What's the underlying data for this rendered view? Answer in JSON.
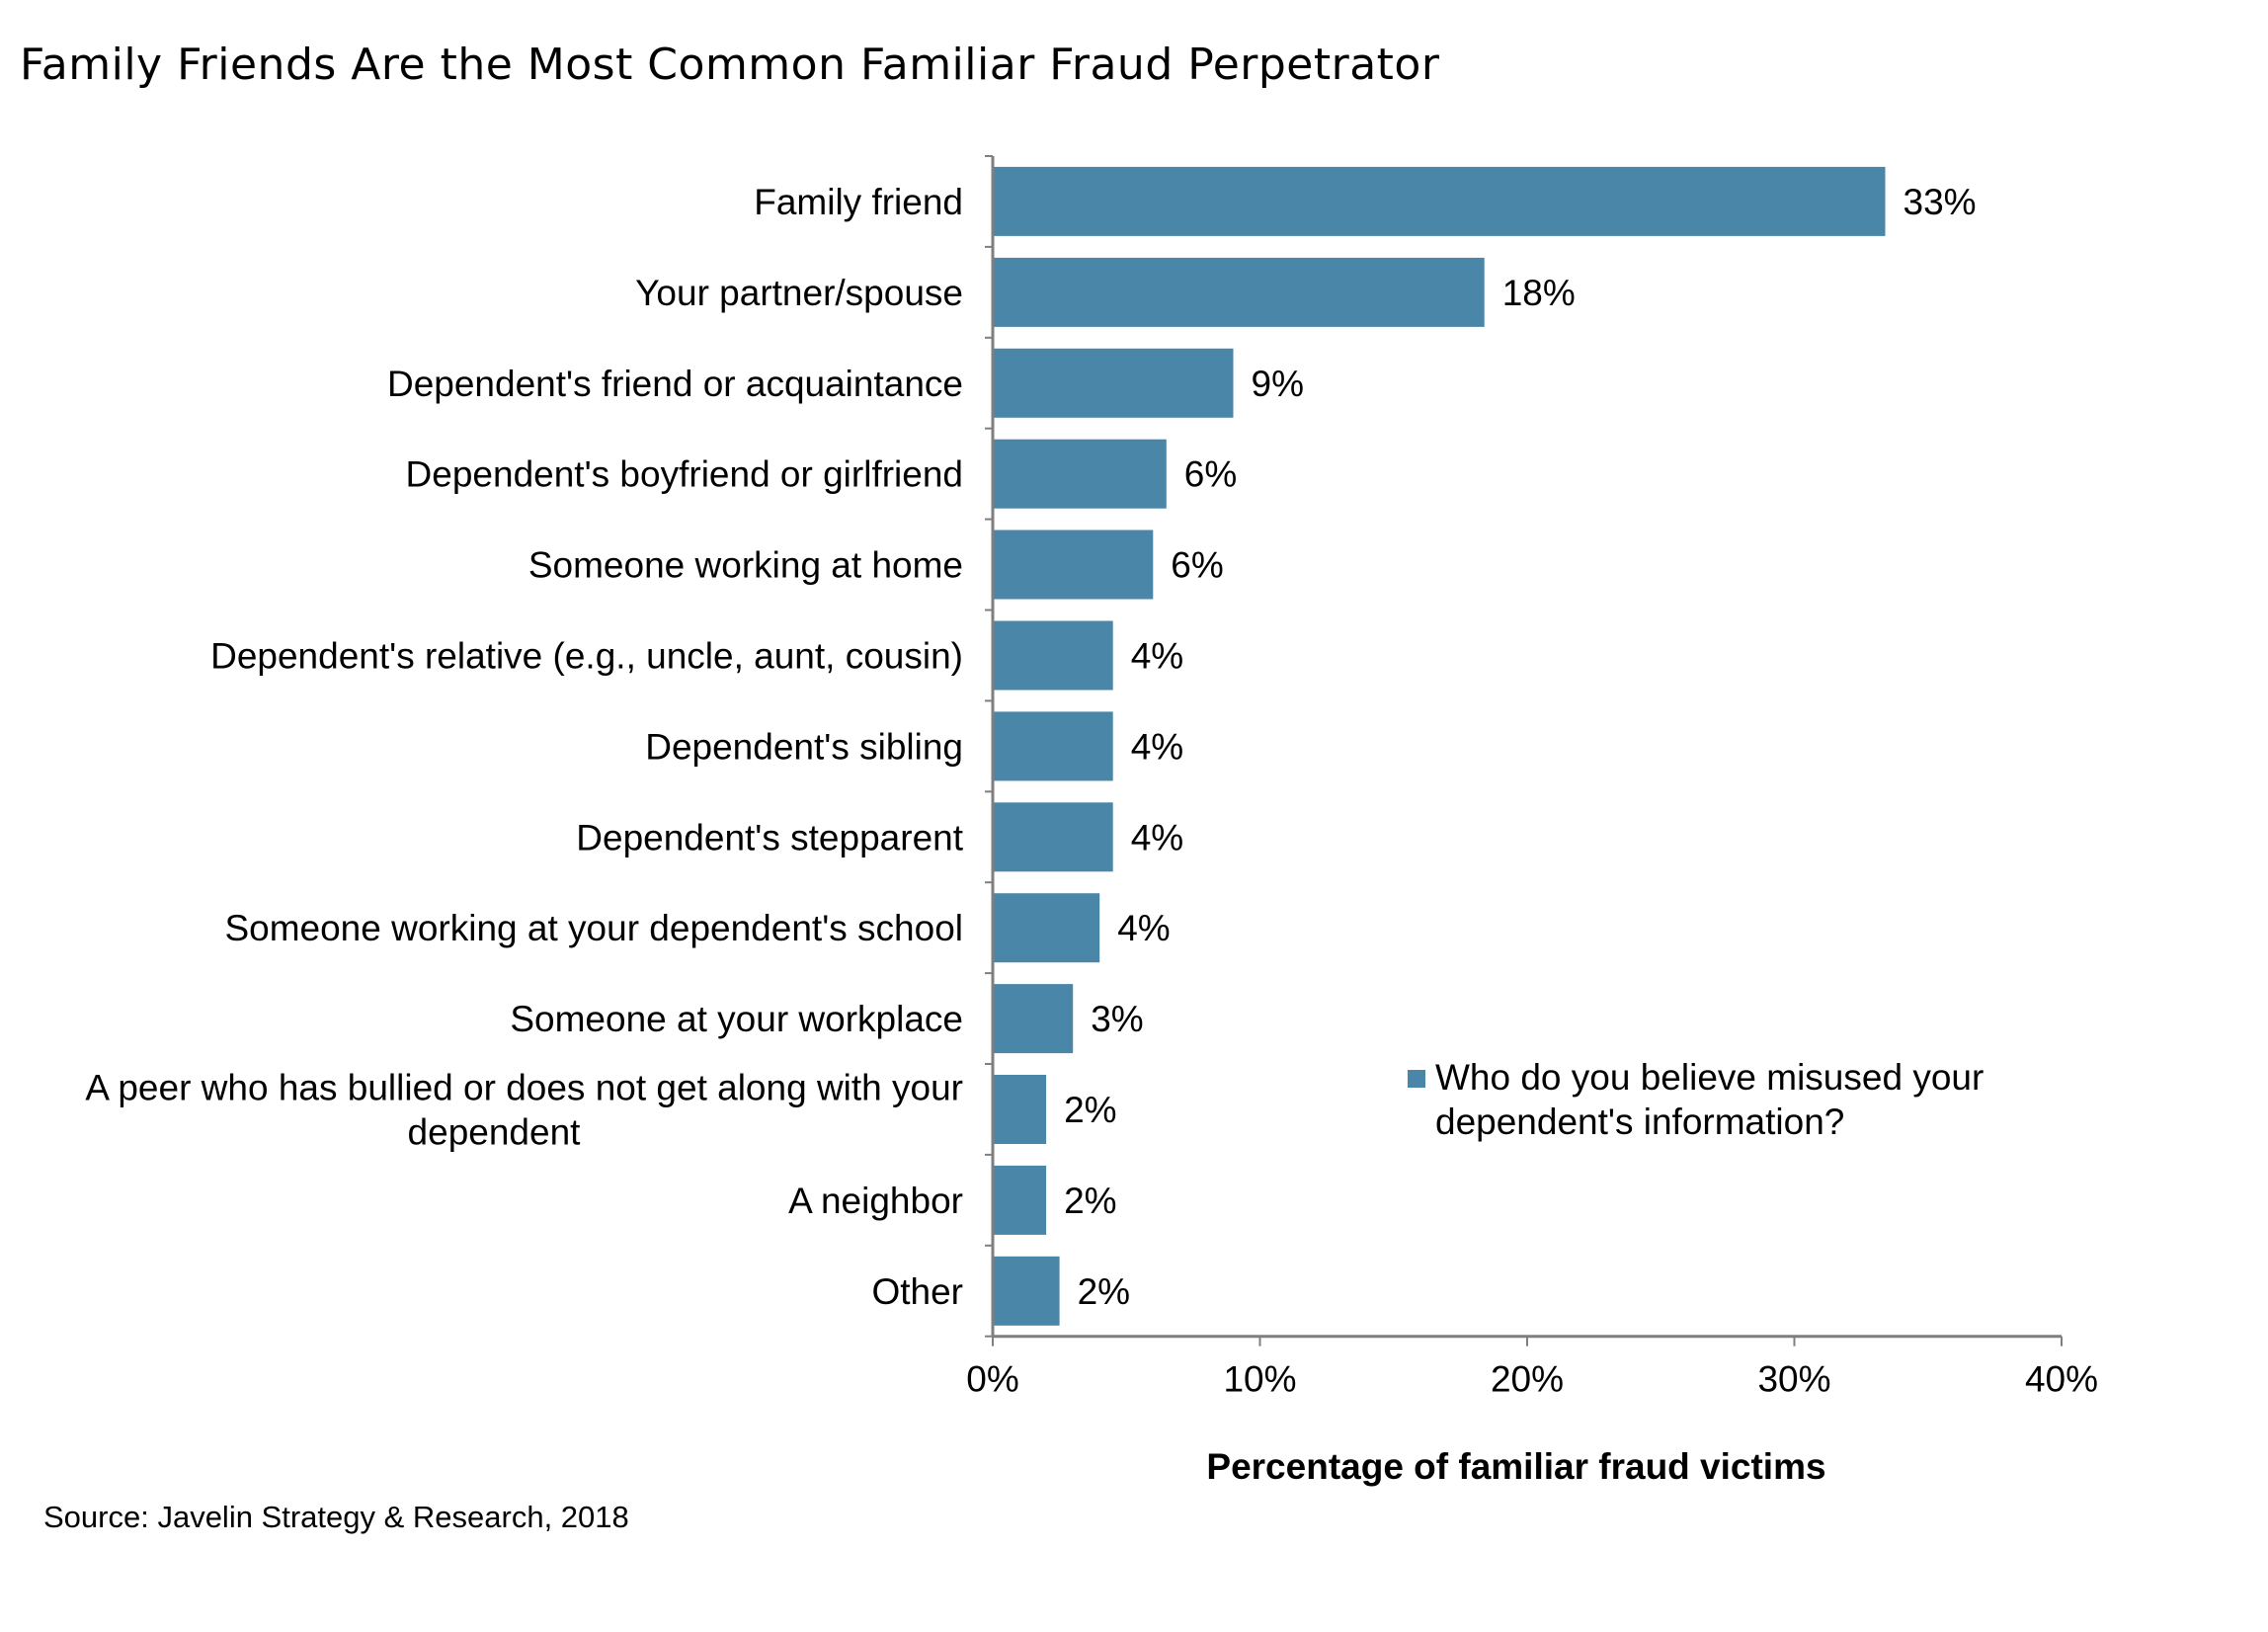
{
  "title": "Family Friends Are the Most Common Familiar Fraud Perpetrator",
  "source": "Source: Javelin Strategy & Research, 2018",
  "colors": {
    "bar": "#4a86a8",
    "axis": "#7f7f7f"
  },
  "chart_data": {
    "type": "bar",
    "orientation": "horizontal",
    "categories": [
      "Family friend",
      "Your partner/spouse",
      "Dependent's friend or acquaintance",
      "Dependent's boyfriend or girlfriend",
      "Someone working at home",
      "Dependent's relative (e.g., uncle, aunt, cousin)",
      "Dependent's sibling",
      "Dependent's stepparent",
      "Someone working at your dependent's school",
      "Someone at your workplace",
      "A peer who has bullied or does not get along with your dependent",
      "A neighbor",
      "Other"
    ],
    "category_lines": [
      [
        "Family friend"
      ],
      [
        "Your partner/spouse"
      ],
      [
        "Dependent's friend or acquaintance"
      ],
      [
        "Dependent's boyfriend or girlfriend"
      ],
      [
        "Someone working at home"
      ],
      [
        "Dependent's relative (e.g., uncle, aunt, cousin)"
      ],
      [
        "Dependent's sibling"
      ],
      [
        "Dependent's stepparent"
      ],
      [
        "Someone working at your dependent's school"
      ],
      [
        "Someone at your workplace"
      ],
      [
        "A peer who has bullied or does not get along with your",
        "dependent"
      ],
      [
        "A neighbor"
      ],
      [
        "Other"
      ]
    ],
    "series": [
      {
        "name": "Who do you believe misused your dependent's information?",
        "values": [
          33.4,
          18.4,
          9.0,
          6.5,
          6.0,
          4.5,
          4.5,
          4.5,
          4.0,
          3.0,
          2.0,
          2.0,
          2.5
        ],
        "labels": [
          "33%",
          "18%",
          "9%",
          "6%",
          "6%",
          "4%",
          "4%",
          "4%",
          "4%",
          "3%",
          "2%",
          "2%",
          "2%"
        ]
      }
    ],
    "xlim": [
      0,
      40
    ],
    "xticks": [
      "0%",
      "10%",
      "20%",
      "30%",
      "40%"
    ],
    "xtick_values": [
      0,
      10,
      20,
      30,
      40
    ],
    "xlabel": "Percentage of familiar fraud victims",
    "ylabel": "",
    "grid": false,
    "legend_position": "right",
    "legend_lines": [
      "Who do you believe misused your",
      "dependent's information?"
    ]
  }
}
